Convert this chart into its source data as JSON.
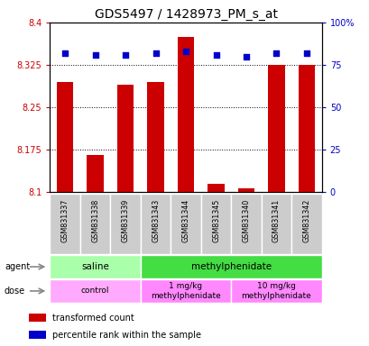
{
  "title": "GDS5497 / 1428973_PM_s_at",
  "samples": [
    "GSM831337",
    "GSM831338",
    "GSM831339",
    "GSM831343",
    "GSM831344",
    "GSM831345",
    "GSM831340",
    "GSM831341",
    "GSM831342"
  ],
  "bar_values": [
    8.295,
    8.165,
    8.29,
    8.295,
    8.375,
    8.115,
    8.107,
    8.325,
    8.325
  ],
  "percentile_values": [
    82,
    81,
    81,
    82,
    83,
    81,
    80,
    82,
    82
  ],
  "ylim_left": [
    8.1,
    8.4
  ],
  "ylim_right": [
    0,
    100
  ],
  "yticks_left": [
    8.1,
    8.175,
    8.25,
    8.325,
    8.4
  ],
  "yticks_right": [
    0,
    25,
    50,
    75,
    100
  ],
  "ytick_labels_left": [
    "8.1",
    "8.175",
    "8.25",
    "8.325",
    "8.4"
  ],
  "ytick_labels_right": [
    "0",
    "25",
    "50",
    "75",
    "100%"
  ],
  "hlines": [
    8.175,
    8.25,
    8.325
  ],
  "bar_color": "#cc0000",
  "percentile_color": "#0000cc",
  "bar_base": 8.1,
  "agent_groups": [
    {
      "label": "saline",
      "start": 0,
      "end": 3,
      "color": "#aaffaa"
    },
    {
      "label": "methylphenidate",
      "start": 3,
      "end": 9,
      "color": "#44dd44"
    }
  ],
  "dose_groups": [
    {
      "label": "control",
      "start": 0,
      "end": 3,
      "color": "#ffaaff"
    },
    {
      "label": "1 mg/kg\nmethylphenidate",
      "start": 3,
      "end": 6,
      "color": "#ff88ff"
    },
    {
      "label": "10 mg/kg\nmethylphenidate",
      "start": 6,
      "end": 9,
      "color": "#ff88ff"
    }
  ],
  "legend_items": [
    {
      "color": "#cc0000",
      "label": "transformed count"
    },
    {
      "color": "#0000cc",
      "label": "percentile rank within the sample"
    }
  ],
  "tick_color_left": "#cc0000",
  "tick_color_right": "#0000cc",
  "title_fontsize": 10
}
